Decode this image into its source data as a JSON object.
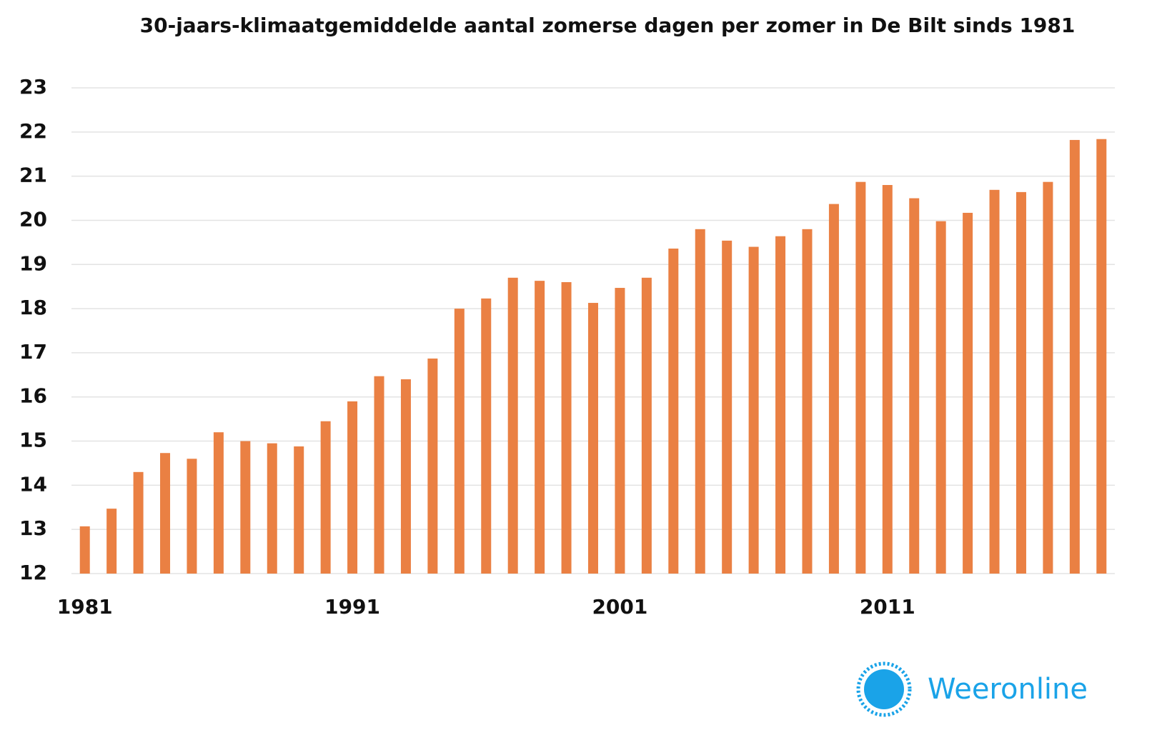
{
  "chart_data": {
    "type": "bar",
    "title": "30-jaars-klimaatgemiddelde aantal zomerse dagen per zomer in De Bilt sinds 1981",
    "categories": [
      "1981",
      null,
      null,
      null,
      null,
      null,
      null,
      null,
      null,
      null,
      "1991",
      null,
      null,
      null,
      null,
      null,
      null,
      null,
      null,
      null,
      "2001",
      null,
      null,
      null,
      null,
      null,
      null,
      null,
      null,
      null,
      "2011",
      null,
      null,
      null,
      null,
      null,
      null,
      null,
      null
    ],
    "values": [
      13.07,
      13.47,
      14.3,
      14.73,
      14.6,
      15.2,
      15.0,
      14.95,
      14.88,
      15.45,
      15.9,
      16.47,
      16.4,
      16.87,
      18.0,
      18.23,
      18.7,
      18.63,
      18.6,
      18.13,
      18.47,
      18.7,
      19.36,
      19.8,
      19.54,
      19.4,
      19.64,
      19.8,
      20.37,
      20.87,
      20.8,
      20.5,
      19.98,
      20.17,
      20.69,
      20.64,
      20.87,
      21.82,
      21.84
    ],
    "color": "#ea8043",
    "ylim": [
      12,
      23
    ],
    "yticks": [
      12,
      13,
      14,
      15,
      16,
      17,
      18,
      19,
      20,
      21,
      22,
      23
    ],
    "grid": true
  },
  "logo": "Weeronline"
}
